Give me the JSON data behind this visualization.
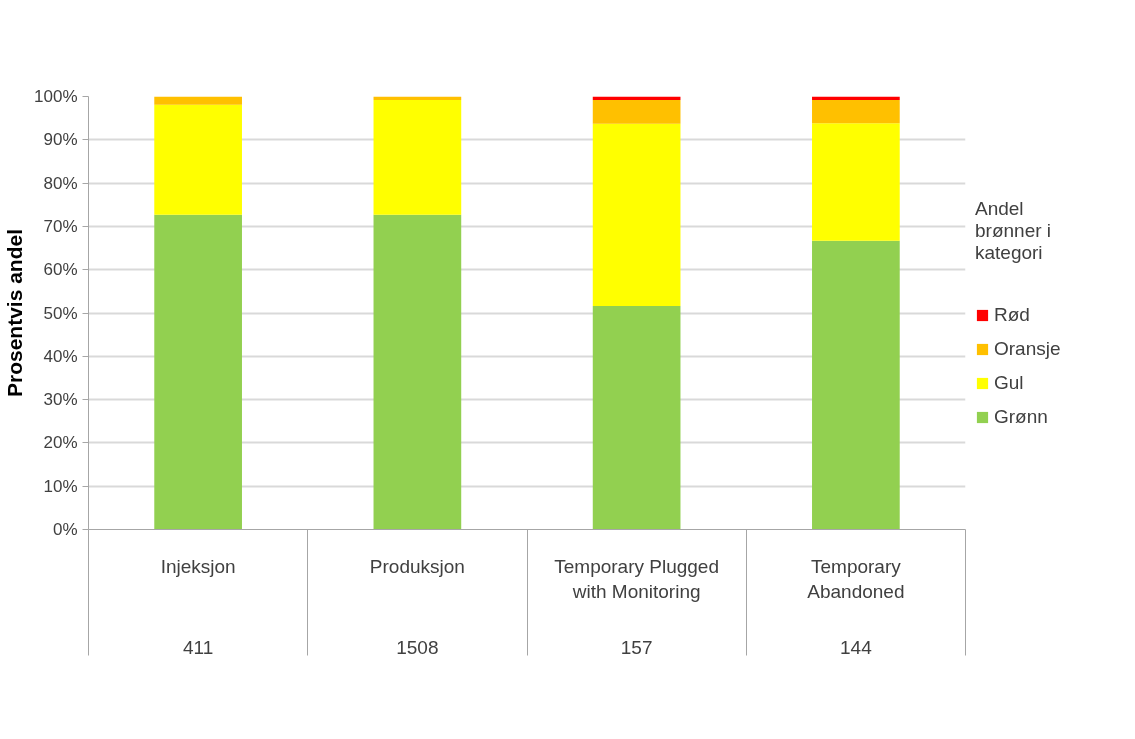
{
  "chart_data": {
    "type": "bar",
    "stacked": true,
    "ylabel": "Prosentvis andel",
    "legend_title": "Andel brønner i kategori",
    "categories": [
      "Injeksjon",
      "Produksjon",
      "Temporary Plugged\nwith Monitoring",
      "Temporary\nAbandoned"
    ],
    "series": [
      {
        "name": "Grønn",
        "color": "#92d050",
        "values": [
          72.7,
          72.7,
          51.6,
          66.7
        ]
      },
      {
        "name": "Gul",
        "color": "#ffff00",
        "values": [
          25.4,
          26.5,
          42.1,
          27.1
        ]
      },
      {
        "name": "Oransje",
        "color": "#ffc000",
        "values": [
          1.9,
          0.8,
          5.5,
          5.4
        ]
      },
      {
        "name": "Rød",
        "color": "#ff0000",
        "values": [
          0,
          0,
          0.8,
          0.8
        ]
      }
    ],
    "annotations": [
      "411",
      "1508",
      "157",
      "144"
    ],
    "ylim": [
      0,
      100
    ],
    "yticks": [
      {
        "value": 0,
        "label": "0%"
      },
      {
        "value": 10,
        "label": "10%"
      },
      {
        "value": 20,
        "label": "20%"
      },
      {
        "value": 30,
        "label": "30%"
      },
      {
        "value": 40,
        "label": "40%"
      },
      {
        "value": 50,
        "label": "50%"
      },
      {
        "value": 60,
        "label": "60%"
      },
      {
        "value": 70,
        "label": "70%"
      },
      {
        "value": 80,
        "label": "80%"
      },
      {
        "value": 90,
        "label": "90%"
      },
      {
        "value": 100,
        "label": "100%"
      }
    ],
    "grid": "y",
    "legend": "right"
  }
}
